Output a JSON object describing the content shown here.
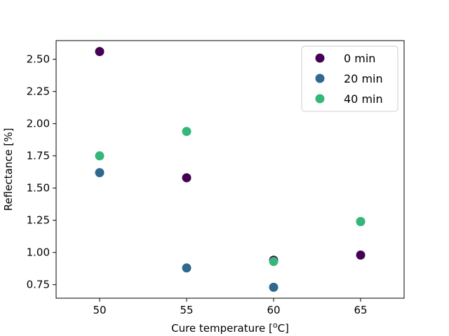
{
  "chart_data": {
    "type": "scatter",
    "title": "",
    "xlabel": "Cure temperature [",
    "xlabel_sup": "o",
    "xlabel_suffix": "C]",
    "ylabel": "Reflectance [%]",
    "xlim": [
      47.5,
      67.5
    ],
    "ylim": [
      0.645,
      2.645
    ],
    "xticks": [
      50,
      55,
      60,
      65
    ],
    "yticks": [
      0.75,
      1.0,
      1.25,
      1.5,
      1.75,
      2.0,
      2.25,
      2.5
    ],
    "ytick_labels": [
      "0.75",
      "1.00",
      "1.25",
      "1.50",
      "1.75",
      "2.00",
      "2.25",
      "2.50"
    ],
    "grid": false,
    "legend_position": "top-right",
    "series": [
      {
        "name": "0 min",
        "color": "#440154",
        "x": [
          50,
          55,
          60,
          65
        ],
        "y": [
          2.56,
          1.58,
          0.94,
          0.98
        ]
      },
      {
        "name": "20 min",
        "color": "#31688e",
        "x": [
          50,
          55,
          60,
          65
        ],
        "y": [
          1.62,
          0.88,
          0.73,
          1.24
        ]
      },
      {
        "name": "40 min",
        "color": "#35b779",
        "x": [
          50,
          55,
          60,
          65
        ],
        "y": [
          1.75,
          1.94,
          0.93,
          1.24
        ]
      }
    ]
  }
}
